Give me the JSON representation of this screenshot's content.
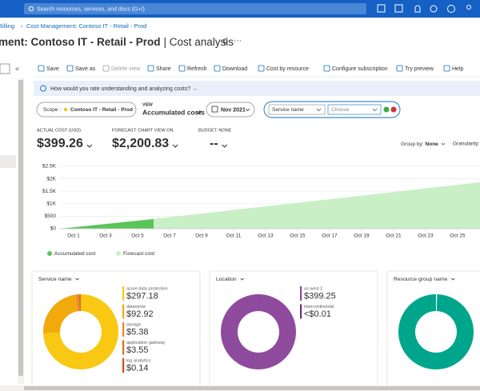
{
  "topbar": {
    "search": "Search resources, services, and docs (G+/)"
  },
  "breadcrumb": [
    "Billing",
    "Cost Management: Contoso IT - Retail - Prod"
  ],
  "header": {
    "title": "ment: Contoso IT - Retail - Prod",
    "subtitle": "| Cost analysis"
  },
  "toolbar": [
    "Save",
    "Save as",
    "Delete view",
    "Share",
    "Refresh",
    "Download",
    "Cost by resource",
    "Configure subscription",
    "Try preview",
    "Help"
  ],
  "banner": "How would you rate understanding and analyzing costs? →",
  "filters": {
    "scope_label": "Scope :",
    "scope": "Contoso IT - Retail - Prod",
    "view_label": "VIEW",
    "view": "Accumulated costs",
    "date": "Nov 2021",
    "field": "Service name",
    "value": "Choose"
  },
  "metrics": [
    {
      "label": "ACTUAL COST (USD)",
      "value": "$399.26"
    },
    {
      "label": "FORECAST: CHART VIEW ON",
      "value": "$2,200.83"
    },
    {
      "label": "BUDGET: NONE",
      "value": "--"
    }
  ],
  "group_by": {
    "label": "Group by:",
    "value": "None"
  },
  "granularity": "Granularity:",
  "chart_data": {
    "type": "area",
    "xlim": [
      0.15,
      26.4
    ],
    "xticks": [
      {
        "value": 1,
        "label": "Oct 1"
      },
      {
        "value": 3,
        "label": "Oct 3"
      },
      {
        "value": 5,
        "label": "Oct 5"
      },
      {
        "value": 7,
        "label": "Oct 7"
      },
      {
        "value": 9,
        "label": "Oct 9"
      },
      {
        "value": 11,
        "label": "Oct 11"
      },
      {
        "value": 13,
        "label": "Oct 13"
      },
      {
        "value": 15,
        "label": "Oct 15"
      },
      {
        "value": 17,
        "label": "Oct 17"
      },
      {
        "value": 19,
        "label": "Oct 19"
      },
      {
        "value": 21,
        "label": "Oct 21"
      },
      {
        "value": 23,
        "label": "Oct 23"
      },
      {
        "value": 25,
        "label": "Oct 25"
      }
    ],
    "ylim": [
      0,
      2500
    ],
    "yticks": [
      {
        "value": 0,
        "label": "$0"
      },
      {
        "value": 500,
        "label": "$500"
      },
      {
        "value": 1000,
        "label": "$1K"
      },
      {
        "value": 1500,
        "label": "$1.5K"
      },
      {
        "value": 2000,
        "label": "$2K"
      },
      {
        "value": 2500,
        "label": "$2.5K"
      }
    ],
    "grid": true,
    "series": [
      {
        "name": "Accumulated cost",
        "color": "#5ac55a",
        "x": [
          0.15,
          6
        ],
        "values": [
          0,
          390
        ]
      },
      {
        "name": "Forecast cost",
        "color": "#c9efc6",
        "x": [
          6,
          26.4
        ],
        "values": [
          390,
          1860
        ]
      }
    ]
  },
  "cards": [
    {
      "title": "Service name",
      "items": [
        {
          "name": "azure data protection",
          "color": "#f8c812",
          "value": 297.18,
          "value_label": "$297.18"
        },
        {
          "name": "dataverse",
          "color": "#f2a90c",
          "value": 92.92,
          "value_label": "$92.92"
        },
        {
          "name": "storage",
          "color": "#ec8a2c",
          "value": 5.38,
          "value_label": "$5.38"
        },
        {
          "name": "application gateway",
          "color": "#e06a1f",
          "value": 3.55,
          "value_label": "$3.55"
        },
        {
          "name": "log analytics",
          "color": "#d44a1a",
          "value": 0.14,
          "value_label": "$0.14"
        }
      ]
    },
    {
      "title": "Location",
      "items": [
        {
          "name": "us west 2",
          "color": "#8e4b9e",
          "value": 399.25,
          "value_label": "$399.25"
        },
        {
          "name": "intercontinental",
          "color": "#6b2f7a",
          "value": 0.01,
          "value_label": "<$0.01"
        }
      ]
    },
    {
      "title": "Resource group name",
      "items": []
    }
  ]
}
